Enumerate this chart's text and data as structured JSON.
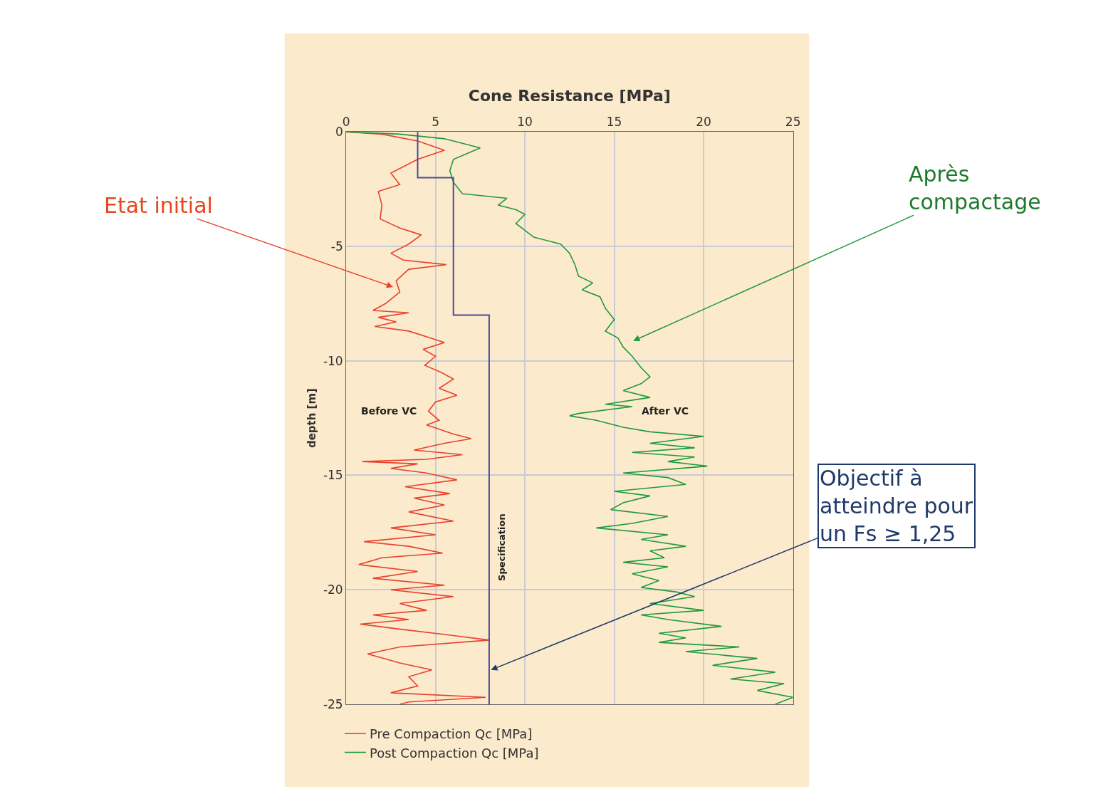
{
  "chart_data": {
    "type": "line",
    "title": "Cone Resistance [MPa]",
    "ylabel": "depth [m]",
    "xlim": [
      0,
      25
    ],
    "xticks": [
      0,
      5,
      10,
      15,
      20,
      25
    ],
    "ylim": [
      -25,
      0
    ],
    "yticks": [
      0,
      -5,
      -10,
      -15,
      -20,
      -25
    ],
    "grid": true,
    "legend": "bottom",
    "marker": "none",
    "line_style": "solid",
    "series": [
      {
        "name": "Pre Compaction Qc [MPa]",
        "color": "#e8412c",
        "x": [
          0,
          2,
          4,
          5.5,
          4,
          2.5,
          3,
          1.8,
          2,
          1.9,
          3,
          4.2,
          3.5,
          2.5,
          3.2,
          5.6,
          3.5,
          2.8,
          3,
          2.2,
          1.5,
          3.5,
          1.8,
          2.8,
          1.6,
          3.5,
          4.7,
          5.5,
          4.3,
          5,
          4.4,
          5.3,
          6,
          5.2,
          6.2,
          5,
          4.6,
          5.2,
          4.5,
          6,
          7,
          5.5,
          3.8,
          6.5,
          4.5,
          0.9,
          4,
          2.5,
          4.5,
          6.2,
          3.3,
          5.8,
          3.8,
          5.5,
          3.5,
          6,
          2.5,
          5,
          1,
          3.5,
          5.4,
          2,
          0.7,
          4,
          1.5,
          5.5,
          2.5,
          6,
          3,
          4.5,
          1.5,
          3.5,
          0.8,
          2.8,
          6,
          8,
          3,
          1.2,
          3,
          4.8,
          3.5,
          4,
          2.5,
          7.8,
          3.5,
          3
        ],
        "values": [
          0,
          -0.1,
          -0.4,
          -0.8,
          -1.2,
          -1.8,
          -2.3,
          -2.6,
          -3.2,
          -3.8,
          -4.2,
          -4.5,
          -4.9,
          -5.3,
          -5.6,
          -5.8,
          -6,
          -6.5,
          -7,
          -7.5,
          -7.8,
          -7.9,
          -8.1,
          -8.3,
          -8.5,
          -8.7,
          -9,
          -9.2,
          -9.5,
          -9.8,
          -10.2,
          -10.5,
          -10.8,
          -11.2,
          -11.5,
          -11.8,
          -12.2,
          -12.6,
          -12.8,
          -13.2,
          -13.4,
          -13.6,
          -13.9,
          -14.1,
          -14.3,
          -14.4,
          -14.5,
          -14.7,
          -14.9,
          -15.2,
          -15.5,
          -15.8,
          -16,
          -16.3,
          -16.6,
          -17,
          -17.3,
          -17.6,
          -17.9,
          -18.1,
          -18.4,
          -18.6,
          -18.9,
          -19.2,
          -19.5,
          -19.8,
          -20,
          -20.3,
          -20.6,
          -20.9,
          -21.1,
          -21.3,
          -21.5,
          -21.7,
          -22,
          -22.2,
          -22.5,
          -22.8,
          -23.2,
          -23.5,
          -23.8,
          -24.2,
          -24.5,
          -24.7,
          -24.9,
          -25
        ]
      },
      {
        "name": "Post Compaction Qc [MPa]",
        "color": "#1f9a3c",
        "x": [
          0,
          3,
          5.5,
          7.5,
          6,
          5.8,
          6,
          6.5,
          9,
          8.5,
          9.5,
          10,
          9.5,
          10.5,
          12,
          12.5,
          12.8,
          13,
          13.8,
          13.2,
          14.2,
          14.5,
          15,
          14.5,
          15.2,
          15.5,
          16,
          16.5,
          17,
          16.5,
          15.5,
          17,
          14.5,
          16,
          13,
          12.5,
          14,
          15.5,
          17,
          20,
          17,
          19.5,
          16,
          19.5,
          18,
          20.2,
          15.5,
          18,
          19,
          15,
          17,
          15.5,
          14.8,
          18,
          16,
          14,
          18,
          16.5,
          19,
          17,
          17.8,
          15.5,
          18,
          16,
          17.5,
          16.5,
          18.5,
          19.5,
          17,
          20,
          16.5,
          18,
          21,
          17.5,
          19,
          17.5,
          22,
          19,
          23,
          20.5,
          24,
          21.5,
          24.5,
          23,
          25,
          24
        ],
        "values": [
          0,
          -0.1,
          -0.3,
          -0.7,
          -1.2,
          -1.7,
          -2.2,
          -2.7,
          -2.9,
          -3.2,
          -3.4,
          -3.6,
          -4,
          -4.6,
          -4.9,
          -5.3,
          -5.8,
          -6.3,
          -6.6,
          -6.9,
          -7.2,
          -7.7,
          -8.2,
          -8.7,
          -9,
          -9.4,
          -9.8,
          -10.3,
          -10.7,
          -11,
          -11.3,
          -11.6,
          -11.9,
          -12,
          -12.3,
          -12.4,
          -12.6,
          -12.9,
          -13.1,
          -13.3,
          -13.6,
          -13.8,
          -14,
          -14.2,
          -14.4,
          -14.6,
          -14.9,
          -15.1,
          -15.4,
          -15.7,
          -15.9,
          -16.2,
          -16.5,
          -16.8,
          -17.1,
          -17.3,
          -17.6,
          -17.8,
          -18.1,
          -18.3,
          -18.6,
          -18.8,
          -19,
          -19.3,
          -19.6,
          -19.9,
          -20.1,
          -20.3,
          -20.6,
          -20.9,
          -21.1,
          -21.3,
          -21.6,
          -21.9,
          -22.1,
          -22.3,
          -22.5,
          -22.7,
          -23,
          -23.3,
          -23.6,
          -23.9,
          -24.1,
          -24.4,
          -24.7,
          -25
        ]
      },
      {
        "name": "Specification",
        "color": "#4b4b9b",
        "x": [
          4,
          4,
          6,
          6,
          8,
          8
        ],
        "values": [
          0,
          -2,
          -2,
          -8,
          -8,
          -25
        ]
      }
    ],
    "annotations": [
      "Before VC",
      "After VC",
      "Etat initial",
      "Après compactage",
      {
        "text": "Objectif à atteindre pour un Fs ≥ 1,25",
        "x": 8.1,
        "y": -23.5
      }
    ]
  }
}
